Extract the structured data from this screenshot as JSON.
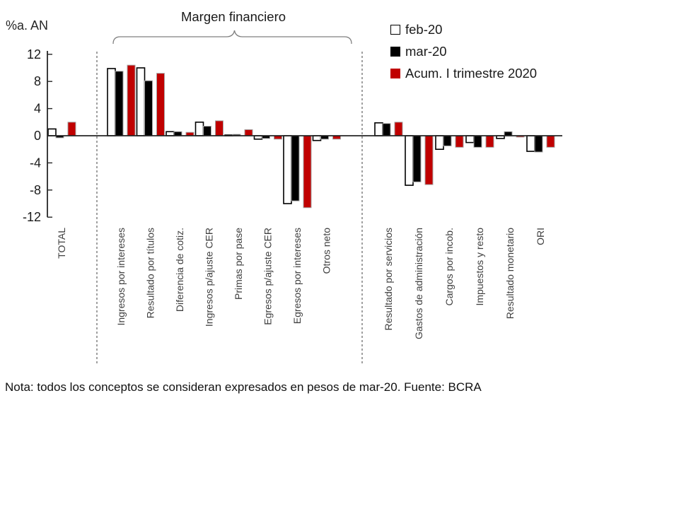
{
  "note": "Nota: todos los conceptos se consideran expresados en pesos de mar-20. Fuente: BCRA",
  "chart_data": {
    "type": "bar",
    "ylabel": "%a. AN",
    "xlabel": "",
    "ylim": [
      -12,
      12
    ],
    "yticks": [
      12,
      8,
      4,
      0,
      -4,
      -8,
      -12
    ],
    "grid": false,
    "legend_position": "top-right",
    "annotation": {
      "text": "Margen financiero",
      "covers_categories": [
        1,
        8
      ]
    },
    "separators_after_category_index": [
      0,
      8
    ],
    "categories": [
      "TOTAL",
      "Ingresos por intereses",
      "Resultado por títulos",
      "Diferencia de cotiz.",
      "Ingresos p/ajuste CER",
      "Primas por pase",
      "Egresos p/ajuste CER",
      "Egresos por intereses",
      "Otros neto",
      "Resultado por servicios",
      "Gastos de administración",
      "Cargos por incob.",
      "Impuestos y resto",
      "Resultado monetario",
      "ORI"
    ],
    "series": [
      {
        "name": "feb-20",
        "color": "#FFFFFF",
        "border": "#000000",
        "values": [
          1.0,
          9.9,
          10.0,
          0.6,
          2.0,
          0.1,
          -0.5,
          -10.0,
          -0.7,
          1.9,
          -7.3,
          -2.0,
          -1.0,
          -0.4,
          -2.3
        ]
      },
      {
        "name": "mar-20",
        "color": "#000000",
        "values": [
          -0.3,
          9.5,
          8.1,
          0.6,
          1.4,
          0.2,
          -0.4,
          -9.6,
          -0.5,
          1.8,
          -6.8,
          -1.5,
          -1.7,
          0.6,
          -2.4
        ]
      },
      {
        "name": "Acum. I trimestre 2020",
        "color": "#C00000",
        "values": [
          2.0,
          10.4,
          9.2,
          0.5,
          2.2,
          0.9,
          -0.5,
          -10.6,
          -0.5,
          2.0,
          -7.2,
          -1.7,
          -1.7,
          -0.2,
          -1.7
        ]
      }
    ]
  }
}
